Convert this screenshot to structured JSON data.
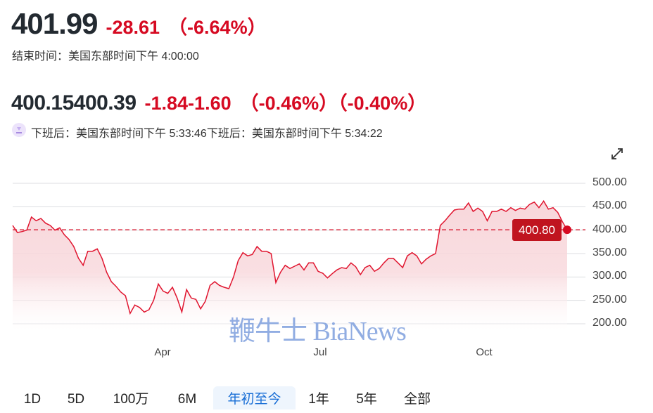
{
  "quote": {
    "price": "401.99",
    "change": "-28.61",
    "change_pct": "（-6.64%）",
    "close_time": "结束时间：美国东部时间下午 4:00:00"
  },
  "after_hours": {
    "price": "400.15400.39",
    "change": "-1.84-1.60",
    "change_pct": "（-0.46%）（-0.40%）",
    "time": "下班后：美国东部时间下午 5:33:46下班后：美国东部时间下午 5:34:22",
    "icon": "after-hours-sunset-icon"
  },
  "expand_icon": "expand-arrows-icon",
  "watermark": "鞭牛士 BiaNews",
  "colors": {
    "down": "#d60a22",
    "line": "#e0152f",
    "fill": "#f8d7db",
    "active_tab": "#1a6fd6"
  },
  "chart_data": {
    "type": "area",
    "ylim": [
      200,
      500
    ],
    "y_ticks": [
      "500.00",
      "450.00",
      "400.00",
      "350.00",
      "300.00",
      "250.00",
      "200.00"
    ],
    "y_tick_values": [
      500,
      450,
      400,
      350,
      300,
      250,
      200
    ],
    "x_ticks": [
      "Apr",
      "Jul",
      "Oct"
    ],
    "reference_line": 400.8,
    "last_value_label": "400.80",
    "grid": true,
    "values": [
      410,
      395,
      397,
      400,
      428,
      420,
      425,
      415,
      410,
      400,
      405,
      390,
      380,
      365,
      340,
      325,
      355,
      355,
      360,
      340,
      310,
      290,
      280,
      268,
      260,
      222,
      240,
      235,
      225,
      230,
      250,
      285,
      270,
      265,
      278,
      255,
      225,
      273,
      255,
      252,
      232,
      248,
      282,
      290,
      282,
      278,
      275,
      300,
      335,
      352,
      345,
      348,
      365,
      355,
      355,
      350,
      288,
      310,
      325,
      318,
      323,
      328,
      315,
      330,
      330,
      312,
      308,
      298,
      307,
      315,
      320,
      318,
      330,
      322,
      305,
      320,
      325,
      312,
      318,
      330,
      340,
      340,
      330,
      320,
      345,
      352,
      345,
      328,
      338,
      345,
      350,
      410,
      420,
      432,
      443,
      445,
      445,
      458,
      440,
      447,
      440,
      420,
      440,
      440,
      445,
      440,
      448,
      442,
      447,
      445,
      455,
      460,
      448,
      462,
      445,
      448,
      438,
      418,
      400.8
    ]
  },
  "ranges": {
    "tabs": [
      "1D",
      "5D",
      "100万",
      "6M",
      "年初至今",
      "1年",
      "5年",
      "全部"
    ],
    "active": "年初至今"
  }
}
